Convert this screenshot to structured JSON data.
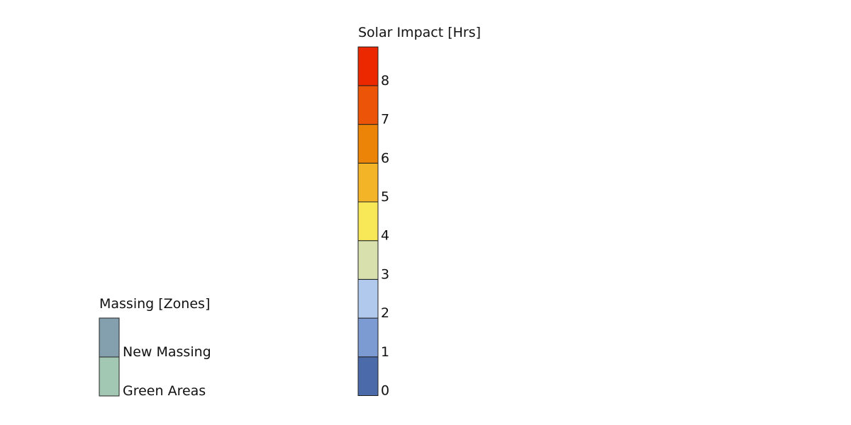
{
  "massing_legend": {
    "title": "Massing [Zones]",
    "items": [
      {
        "label": "New Massing",
        "color": "#84a0ae"
      },
      {
        "label": "Green Areas",
        "color": "#a2c8b4"
      }
    ]
  },
  "solar_legend": {
    "title": "Solar Impact [Hrs]",
    "levels": [
      {
        "label": 0,
        "color": "#4a6aaa"
      },
      {
        "label": 1,
        "color": "#7b9bd2"
      },
      {
        "label": 2,
        "color": "#b0c9ed"
      },
      {
        "label": 3,
        "color": "#d8e0ae"
      },
      {
        "label": 4,
        "color": "#f8e858"
      },
      {
        "label": 5,
        "color": "#f4b428"
      },
      {
        "label": 6,
        "color": "#ec8408"
      },
      {
        "label": 7,
        "color": "#ec5408"
      },
      {
        "label": 8,
        "color": "#ec2800"
      }
    ]
  }
}
